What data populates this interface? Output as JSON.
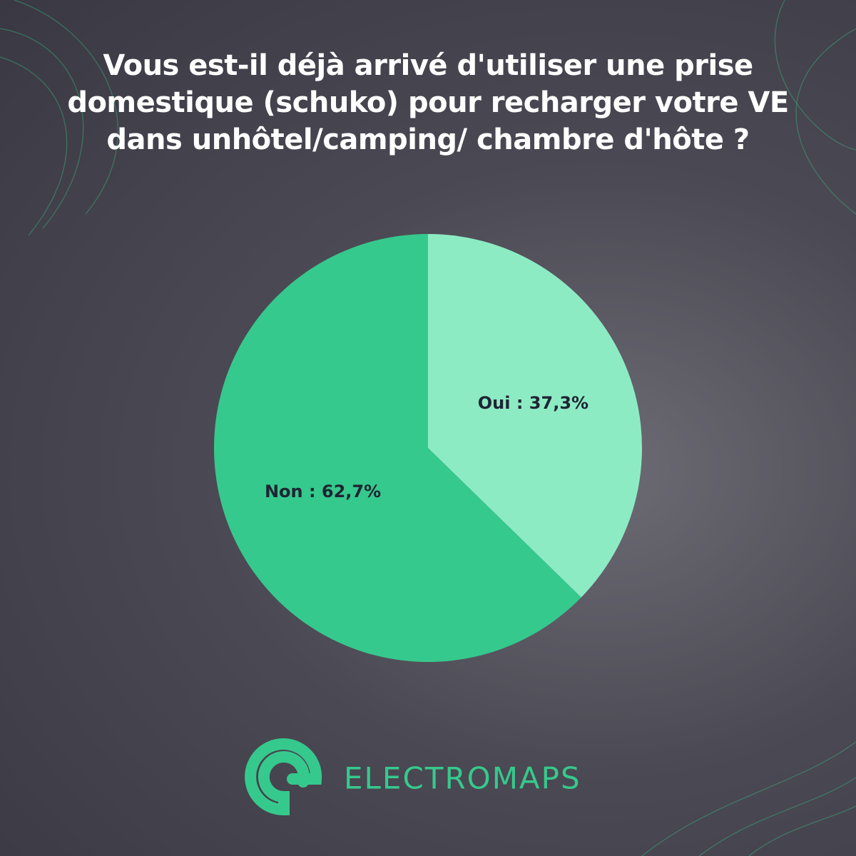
{
  "chart_data": {
    "type": "pie",
    "title": "Vous est-il déjà arrivé d'utiliser une prise domestique (schuko) pour recharger votre VE dans unhôtel/camping/ chambre d'hôte ?",
    "values": [
      37.3,
      62.7
    ],
    "value_labels": [
      "Oui : 37,3%",
      "Non : 62,7%"
    ],
    "colors": [
      "#8debc4",
      "#36c98d"
    ]
  },
  "brand": "ELECTROMAPS"
}
